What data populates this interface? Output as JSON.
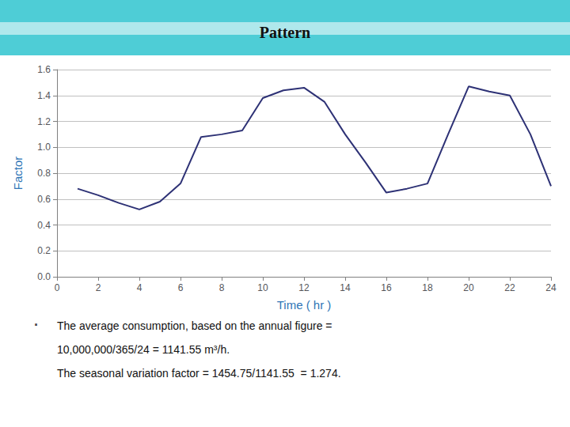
{
  "chart_data": {
    "type": "line",
    "title": "Pattern",
    "x_label": "Time ( hr )",
    "y_label": "Factor",
    "x": [
      1,
      2,
      3,
      4,
      5,
      6,
      7,
      8,
      9,
      10,
      11,
      12,
      13,
      14,
      15,
      16,
      17,
      18,
      19,
      20,
      21,
      22,
      23,
      24
    ],
    "values": [
      0.68,
      0.63,
      0.57,
      0.52,
      0.58,
      0.72,
      1.08,
      1.1,
      1.13,
      1.38,
      1.44,
      1.46,
      1.35,
      1.1,
      0.88,
      0.65,
      0.68,
      0.72,
      1.1,
      1.47,
      1.43,
      1.4,
      1.1,
      0.7
    ],
    "color": "#2d3175",
    "xlim": [
      0,
      24
    ],
    "xticks": [
      0,
      2,
      4,
      6,
      8,
      10,
      12,
      14,
      16,
      18,
      20,
      22,
      24
    ],
    "ylim": [
      0.0,
      1.6
    ],
    "yticks": [
      {
        "value": 0,
        "label": "0.0"
      },
      0.2,
      0.4,
      0.6,
      0.8,
      {
        "value": 1,
        "label": "1.0"
      },
      1.2,
      1.4,
      1.6
    ],
    "grid": true,
    "annotations": [
      "·",
      "The average consumption, based on the annual figure =",
      "10,000,000/365/24 = 1141.55 m³/h.",
      "The seasonal variation factor = 1454.75/1141.55  = 1.274."
    ]
  }
}
